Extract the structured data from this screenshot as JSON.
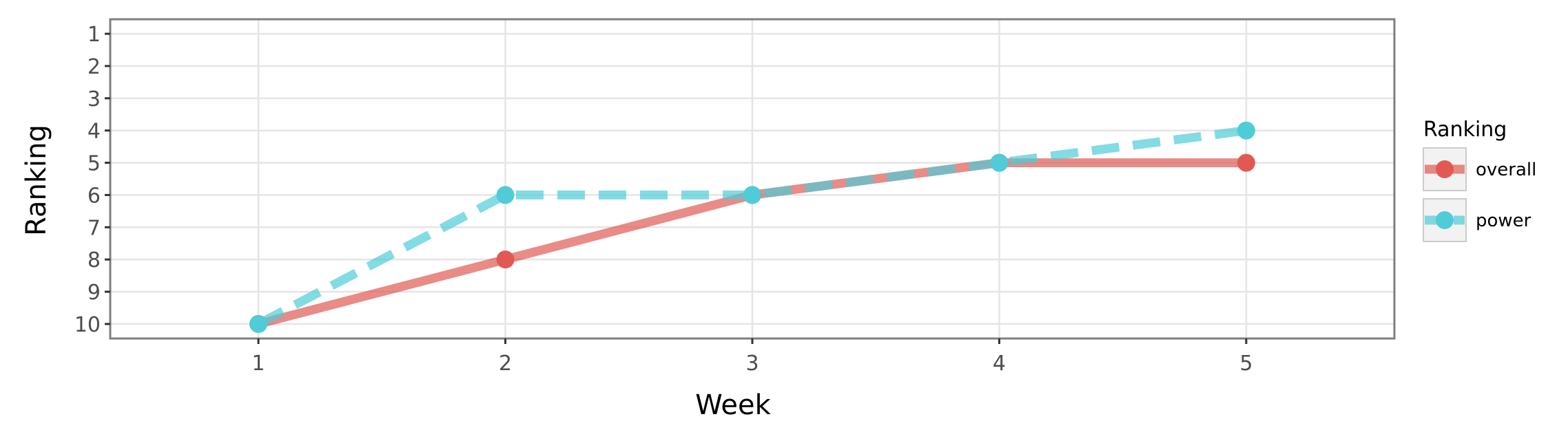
{
  "chart_data": {
    "type": "line",
    "xlabel": "Week",
    "ylabel": "Ranking",
    "x": [
      1,
      2,
      3,
      4,
      5
    ],
    "x_ticks": [
      "1",
      "2",
      "3",
      "4",
      "5"
    ],
    "xlim": [
      0.4,
      5.6
    ],
    "y_ticks": [
      "1",
      "2",
      "3",
      "4",
      "5",
      "6",
      "7",
      "8",
      "9",
      "10"
    ],
    "ylim": [
      0.55,
      10.45
    ],
    "y_reversed": true,
    "grid": true,
    "legend": {
      "title": "Ranking",
      "position": "right"
    },
    "series": [
      {
        "name": "overall",
        "values": [
          10,
          8,
          6,
          5,
          5
        ],
        "color": "#E05A53",
        "line_style": "solid"
      },
      {
        "name": "power",
        "values": [
          10,
          6,
          6,
          5,
          4
        ],
        "color": "#4FCCD8",
        "line_style": "dashed"
      }
    ],
    "colors": {
      "panel_border": "#7f7f7f",
      "grid": "#e5e5e5",
      "tick": "#333333",
      "legend_key_bg": "#f2f2f2"
    }
  }
}
